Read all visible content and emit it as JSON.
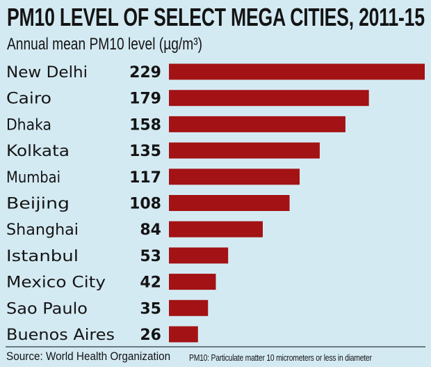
{
  "chart_data": {
    "type": "bar",
    "orientation": "horizontal",
    "title": "PM10 LEVEL OF SELECT MEGA CITIES, 2011-15",
    "subtitle": "Annual mean PM10 level (µg/m³)",
    "categories": [
      "New Delhi",
      "Cairo",
      "Dhaka",
      "Kolkata",
      "Mumbai",
      "Beijing",
      "Shanghai",
      "Istanbul",
      "Mexico City",
      "Sao Paulo",
      "Buenos Aires"
    ],
    "values": [
      229,
      179,
      158,
      135,
      117,
      108,
      84,
      53,
      42,
      35,
      26
    ],
    "xlim": [
      0,
      229
    ],
    "grid": false,
    "data_labels": true,
    "colors": {
      "bar": "#a31214",
      "background": "#d4eaf3",
      "text": "#141414"
    }
  },
  "footer": {
    "source": "Source: World Health Organization",
    "note": "PM10: Particulate matter 10 micrometers or less in diameter"
  }
}
